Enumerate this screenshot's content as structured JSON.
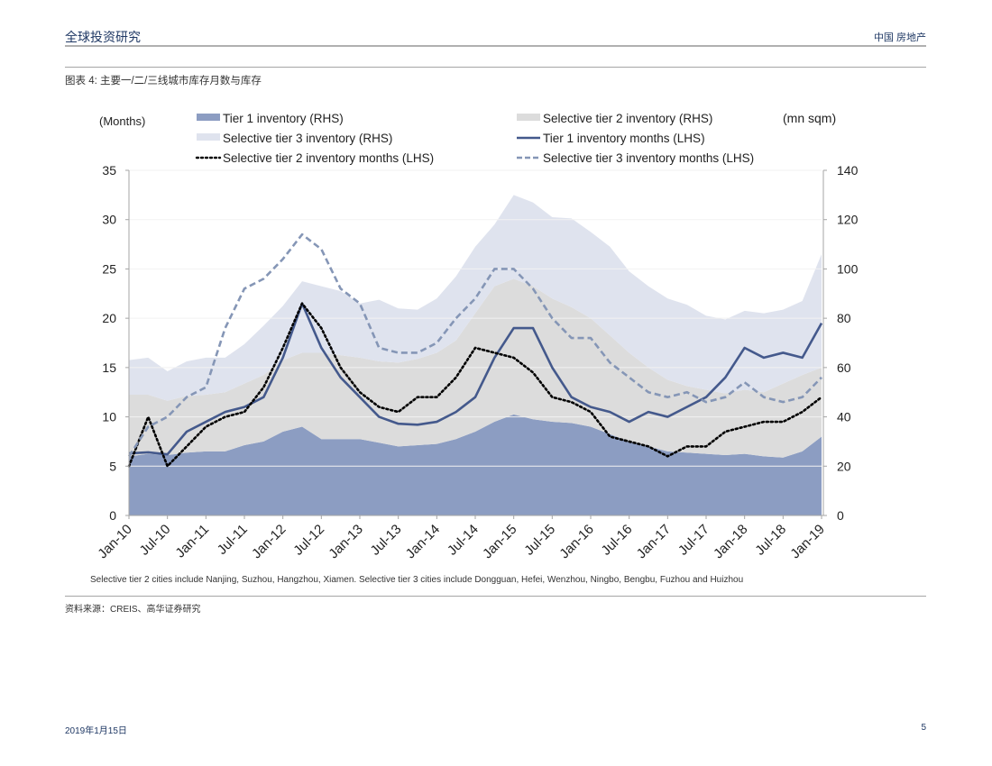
{
  "header": {
    "left": "全球投资研究",
    "right": "中国 房地产"
  },
  "figure_title": "图表 4: 主要一/二/三线城市库存月数与库存",
  "source": "资料来源：CREIS、高华证券研究",
  "footer": {
    "date": "2019年1月15日",
    "page": "5"
  },
  "colors": {
    "tier1_area": "#8c9dc2",
    "tier2_area": "#dcdcdc",
    "tier3_area": "#dfe3ee",
    "tier1_line": "#44598c",
    "tier2_line": "#000000",
    "tier3_line": "#8596b6"
  },
  "chart_data": {
    "type": "area",
    "title": "",
    "left_axis_label": "(Months)",
    "right_axis_label": "(mn sqm)",
    "left_ylim": [
      0,
      35
    ],
    "right_ylim": [
      0,
      140
    ],
    "left_ticks": [
      "0",
      "5",
      "10",
      "15",
      "20",
      "25",
      "30",
      "35"
    ],
    "right_ticks": [
      "0",
      "20",
      "40",
      "60",
      "80",
      "100",
      "120",
      "140"
    ],
    "x_tick_labels": [
      "Jan-10",
      "Jul-10",
      "Jan-11",
      "Jul-11",
      "Jan-12",
      "Jul-12",
      "Jan-13",
      "Jul-13",
      "Jan-14",
      "Jul-14",
      "Jan-15",
      "Jul-15",
      "Jan-16",
      "Jul-16",
      "Jan-17",
      "Jul-17",
      "Jan-18",
      "Jul-18",
      "Jan-19"
    ],
    "x": [
      "Jan-10",
      "Apr-10",
      "Jul-10",
      "Oct-10",
      "Jan-11",
      "Apr-11",
      "Jul-11",
      "Oct-11",
      "Jan-12",
      "Apr-12",
      "Jul-12",
      "Oct-12",
      "Jan-13",
      "Apr-13",
      "Jul-13",
      "Oct-13",
      "Jan-14",
      "Apr-14",
      "Jul-14",
      "Oct-14",
      "Jan-15",
      "Apr-15",
      "Jul-15",
      "Oct-15",
      "Jan-16",
      "Apr-16",
      "Jul-16",
      "Oct-16",
      "Jan-17",
      "Apr-17",
      "Jul-17",
      "Oct-17",
      "Jan-18",
      "Apr-18",
      "Jul-18",
      "Oct-18",
      "Jan-19"
    ],
    "grid": true,
    "legend_position": "top",
    "footnote": "Selective tier 2 cities include Nanjing, Suzhou, Hangzhou, Xiamen. Selective tier 3 cities include Dongguan, Hefei, Wenzhou, Ningbo, Bengbu, Fuzhou and Huizhou",
    "series": [
      {
        "name": "Tier 1 inventory (RHS)",
        "type": "area",
        "axis": "right",
        "stack": 1,
        "values": [
          24,
          25,
          24.5,
          25.5,
          26,
          26,
          28.5,
          30,
          34,
          36,
          31,
          31,
          31,
          29.5,
          28,
          28.5,
          29,
          31,
          34,
          38,
          41,
          39,
          38,
          37.5,
          36,
          33,
          30,
          28,
          26,
          25.5,
          25,
          24.5,
          25,
          24,
          23.5,
          26,
          32
        ]
      },
      {
        "name": "Selective tier 2 inventory (RHS)",
        "type": "area",
        "axis": "right",
        "stack": 2,
        "values": [
          25,
          24,
          22,
          23,
          23,
          24,
          25,
          27,
          29,
          30,
          35,
          34,
          33,
          33,
          34,
          35,
          37,
          40,
          48,
          55,
          55,
          54,
          50,
          47,
          44,
          40,
          36,
          32,
          29,
          27,
          26,
          25,
          26,
          26,
          30,
          31,
          28
        ]
      },
      {
        "name": "Selective tier 3 inventory (RHS)",
        "type": "area",
        "axis": "right",
        "stack": 3,
        "values": [
          14,
          15,
          12,
          14,
          15,
          14,
          16,
          20,
          22,
          29,
          27,
          26,
          22,
          25,
          22,
          20,
          22,
          26,
          27,
          25,
          34,
          34,
          33,
          36,
          35,
          36,
          33,
          33,
          33,
          33,
          30,
          30,
          32,
          32,
          30,
          30,
          46
        ]
      },
      {
        "name": "Tier 1 inventory months (LHS)",
        "type": "line",
        "axis": "left",
        "style": "solid",
        "values": [
          6.3,
          6.4,
          6.2,
          8.5,
          9.5,
          10.5,
          11,
          12,
          16,
          21.5,
          17,
          14,
          12,
          10,
          9.3,
          9.2,
          9.5,
          10.5,
          12,
          16,
          19,
          19,
          15,
          12,
          11,
          10.5,
          9.5,
          10.5,
          10,
          11,
          12,
          14,
          17,
          16,
          16.5,
          16,
          19.5
        ]
      },
      {
        "name": "Selective tier 2 inventory months (LHS)",
        "type": "line",
        "axis": "left",
        "style": "dotted",
        "values": [
          5,
          10,
          5,
          7,
          9,
          10,
          10.5,
          13,
          17,
          21.5,
          19,
          15,
          12.5,
          11,
          10.5,
          12,
          12,
          14,
          17,
          16.5,
          16,
          14.5,
          12,
          11.5,
          10.5,
          8,
          7.5,
          7,
          6,
          7,
          7,
          8.5,
          9,
          9.5,
          9.5,
          10.5,
          12
        ]
      },
      {
        "name": "Selective tier 3 inventory months (LHS)",
        "type": "line",
        "axis": "left",
        "style": "dashed",
        "values": [
          6,
          9,
          10,
          12,
          13,
          19,
          23,
          24,
          26,
          28.5,
          27,
          23,
          21.5,
          17,
          16.5,
          16.5,
          17.5,
          20,
          22,
          25,
          25,
          23,
          20,
          18,
          18,
          15.5,
          14,
          12.5,
          12,
          12.5,
          11.5,
          12,
          13.5,
          12,
          11.5,
          12,
          14
        ]
      }
    ]
  }
}
